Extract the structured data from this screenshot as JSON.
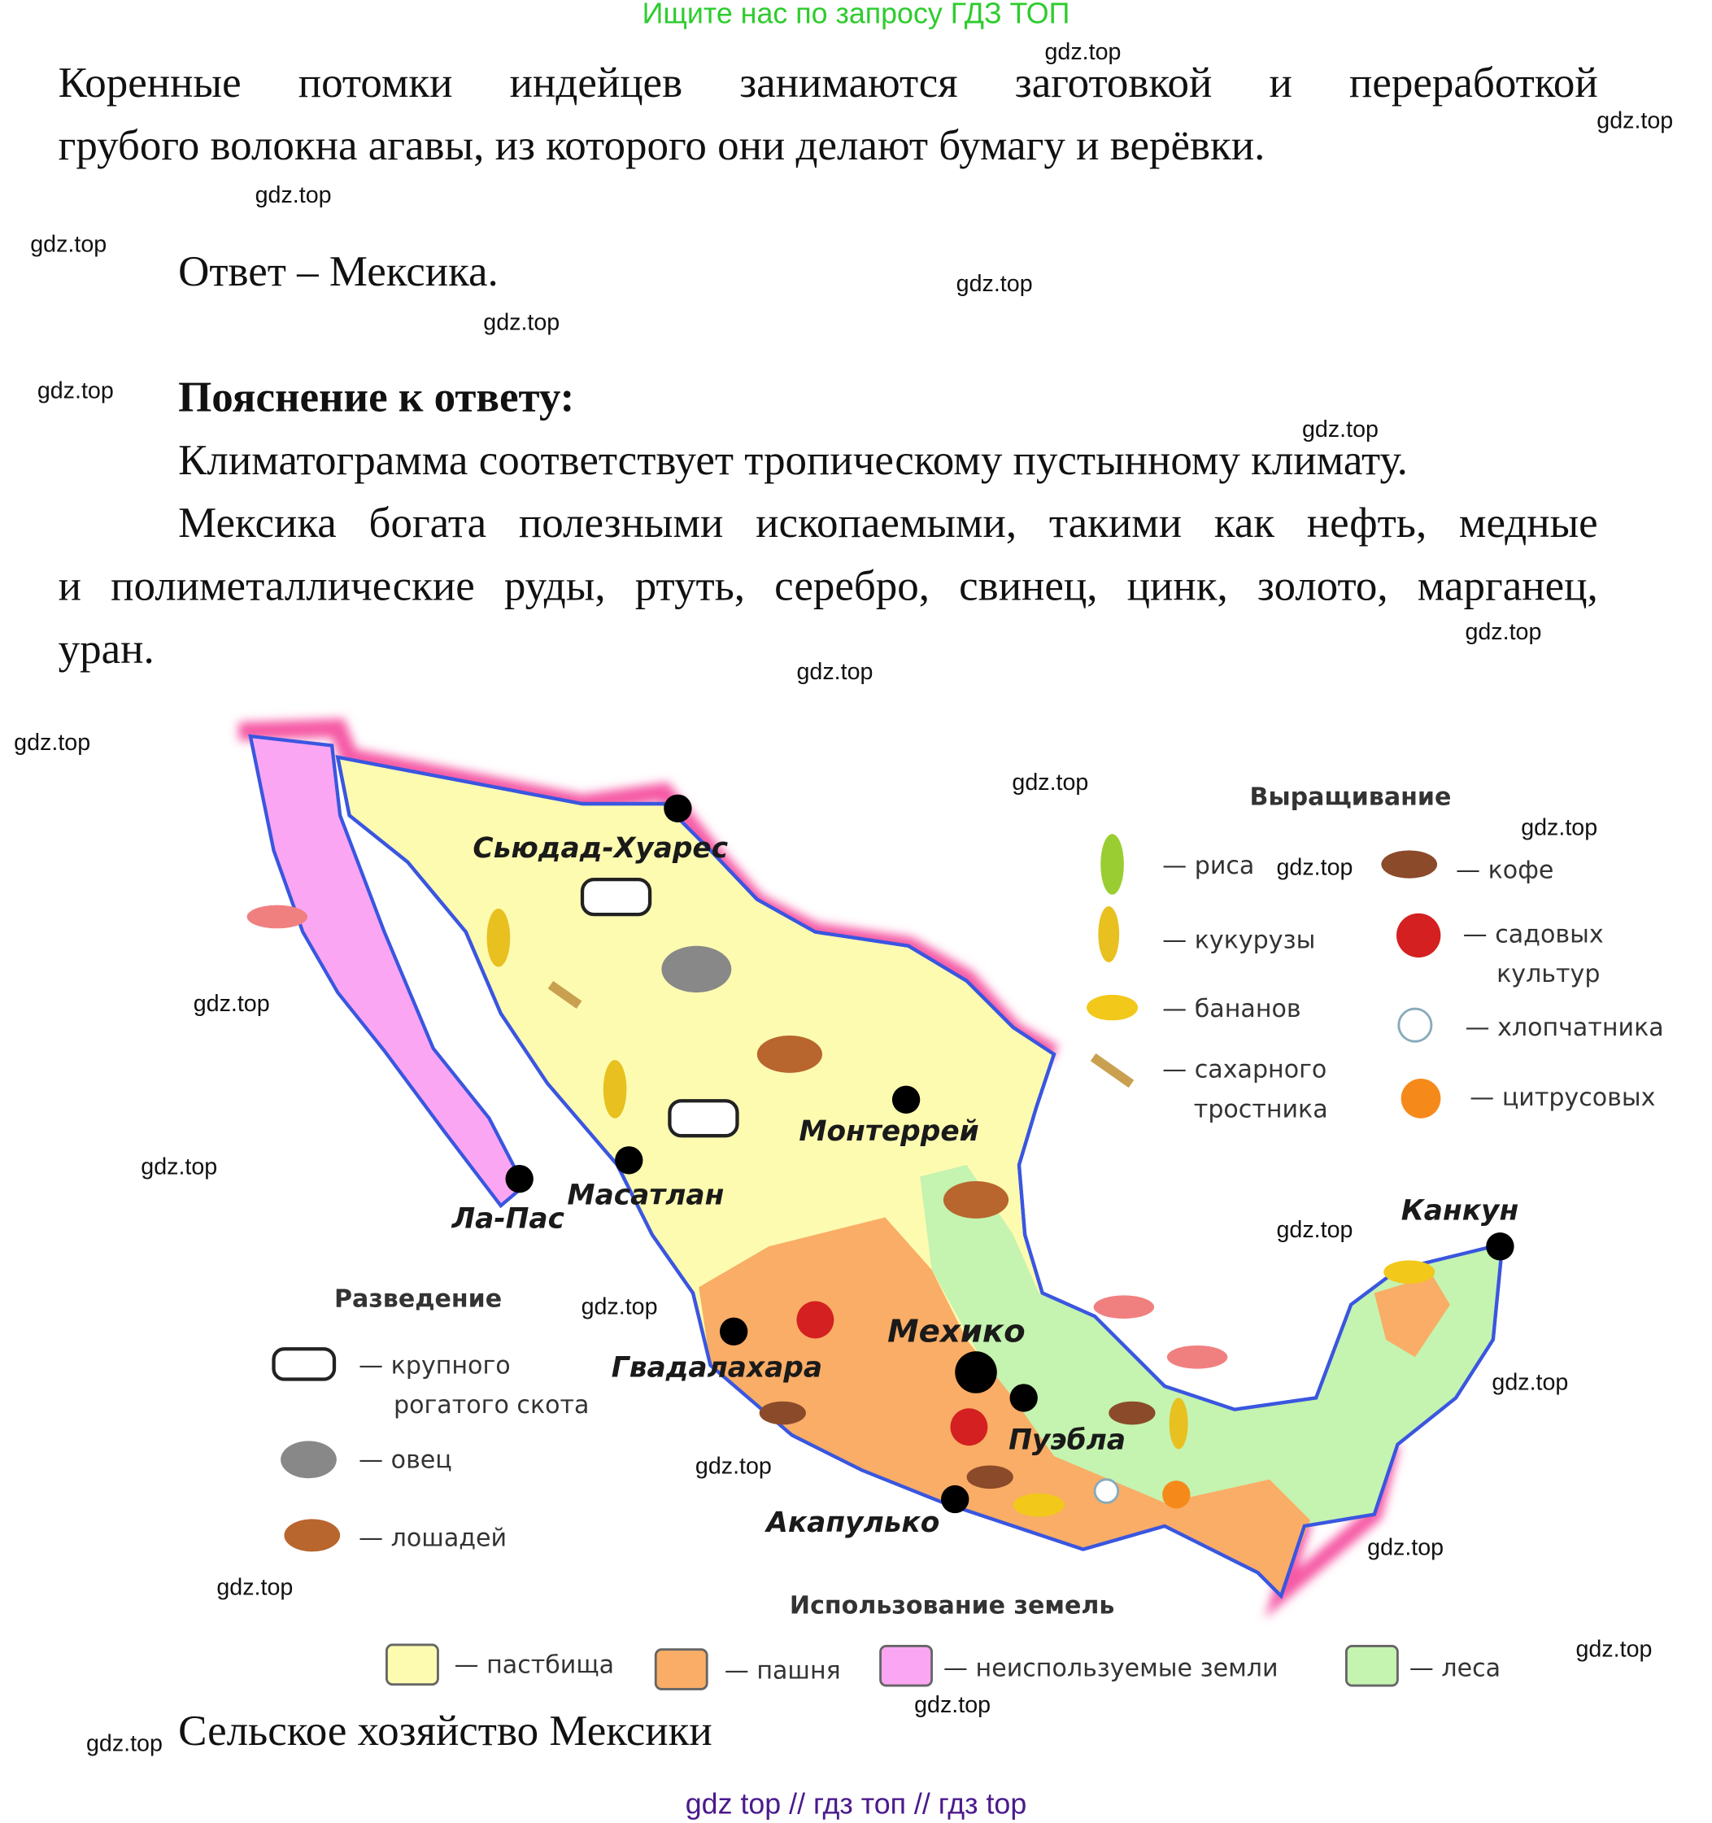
{
  "banner": "Ищите нас по запросу ГДЗ ТОП",
  "paragraph1": {
    "line1": "Коренные потомки индейцев занимаются заготовкой и переработкой",
    "line2": "грубого волокна агавы, из которого они делают бумагу и верёвки."
  },
  "answer": "Ответ – Мексика.",
  "explanation": {
    "heading": "Пояснение к ответу:",
    "line1": "Климатограмма соответствует тропическому пустынному климату.",
    "line2": "Мексика богата полезными ископаемыми, такими как нефть, медные",
    "line3": "и полиметаллические руды, ртуть, серебро, свинец, цинк, золото, марганец,",
    "line4": "уран."
  },
  "map": {
    "cities": [
      "Сьюдад-Хуарес",
      "Монтеррей",
      "Масатлан",
      "Ла-Пас",
      "Канкун",
      "Мехико",
      "Гвадалахара",
      "Пуэбла",
      "Акапулько"
    ],
    "colors": {
      "pasture": "#fdfbb0",
      "arable": "#f9ad66",
      "unused": "#fba6f3",
      "forest": "#c5f3b0",
      "coast": "#f65aa5",
      "border": "#3a56e0"
    },
    "growing": {
      "title": "Выращивание",
      "items": [
        {
          "icon": "rice-icon",
          "label": "— риса"
        },
        {
          "icon": "corn-icon",
          "label": "— кукурузы"
        },
        {
          "icon": "banana-icon",
          "label": "— бананов"
        },
        {
          "icon": "sugarcane-icon",
          "label": "— сахарного",
          "label2": "тростника"
        },
        {
          "icon": "coffee-icon",
          "label": "— кофе"
        },
        {
          "icon": "apple-icon",
          "label": "— садовых",
          "label2": "культур"
        },
        {
          "icon": "cotton-icon",
          "label": "— хлопчатника"
        },
        {
          "icon": "citrus-icon",
          "label": "— цитрусовых"
        }
      ]
    },
    "breeding": {
      "title": "Разведение",
      "items": [
        {
          "icon": "cow-icon",
          "label": "— крупного",
          "label2": "рогатого скота"
        },
        {
          "icon": "sheep-icon",
          "label": "— овец"
        },
        {
          "icon": "horse-icon",
          "label": "— лошадей"
        }
      ]
    },
    "landuse": {
      "title": "Использование земель",
      "items": [
        {
          "label": "— пастбища"
        },
        {
          "label": "— пашня"
        },
        {
          "label": "— неиспользуемые земли"
        },
        {
          "label": "— леса"
        }
      ]
    }
  },
  "caption": "Сельское хозяйство Мексики",
  "watermark": "gdz.top",
  "footer": "gdz top  //  гдз топ  //  гдз top"
}
